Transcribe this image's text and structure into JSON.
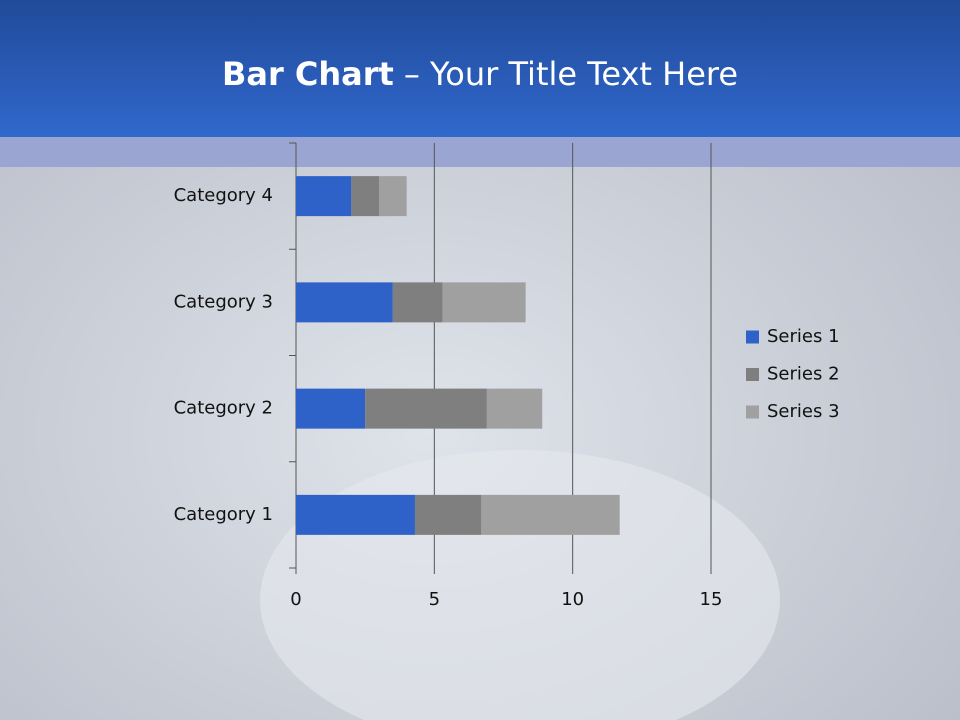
{
  "chart_data": {
    "type": "stacked-barh",
    "title_emphasis": "Bar Chart",
    "title": "– Your Title Text Here",
    "categories": [
      "Category 1",
      "Category 2",
      "Category 3",
      "Category 4"
    ],
    "series": [
      {
        "name": "Series 1",
        "color": "#2f62c8",
        "values": [
          4.3,
          2.5,
          3.5,
          2.0
        ]
      },
      {
        "name": "Series 2",
        "color": "#7f7f7f",
        "values": [
          2.4,
          4.4,
          1.8,
          1.0
        ]
      },
      {
        "name": "Series 3",
        "color": "#a0a0a0",
        "values": [
          5.0,
          2.0,
          3.0,
          1.0
        ]
      }
    ],
    "xlim": [
      0,
      15
    ],
    "xticks": [
      0,
      5,
      10,
      15
    ],
    "grid": true,
    "legend": "right"
  }
}
